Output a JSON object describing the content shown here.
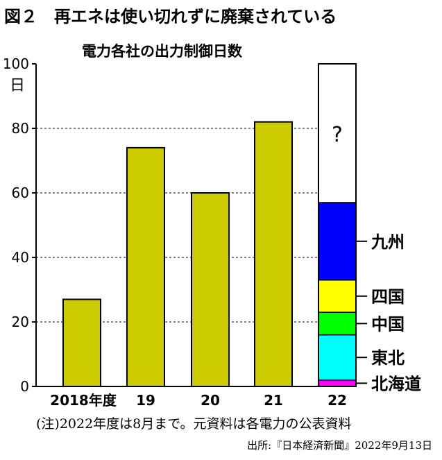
{
  "title": "図２　再エネは使い切れずに廃棄されている",
  "subtitle": "電力各社の出力制御日数",
  "note": "(注)2022年度は8月まで。元資料は各電力の公表資料",
  "source": "出所:『日本経済新聞』2022年9月13日",
  "chart_data": {
    "type": "bar",
    "title": "電力各社の出力制御日数",
    "ylabel": "日",
    "ylim": [
      0,
      100
    ],
    "yticks": [
      0,
      20,
      40,
      60,
      80,
      100
    ],
    "grid": "dashed horizontal at 20, 40, 60, 80",
    "categories": [
      "2018年度",
      "19",
      "20",
      "21",
      "22"
    ],
    "values": [
      27,
      74,
      60,
      82,
      null
    ],
    "bar_color": "#cccc00",
    "stacked_last": {
      "category": "22",
      "total": 100,
      "segments": [
        {
          "name": "北海道",
          "value": 2,
          "color": "#ff00ff"
        },
        {
          "name": "東北",
          "value": 14,
          "color": "#00ffff"
        },
        {
          "name": "中国",
          "value": 7,
          "color": "#00ff00"
        },
        {
          "name": "四国",
          "value": 10,
          "color": "#ffff00"
        },
        {
          "name": "九州",
          "value": 24,
          "color": "#0000ff"
        },
        {
          "name": "?",
          "value": 43,
          "color": "#ffffff"
        }
      ]
    }
  }
}
